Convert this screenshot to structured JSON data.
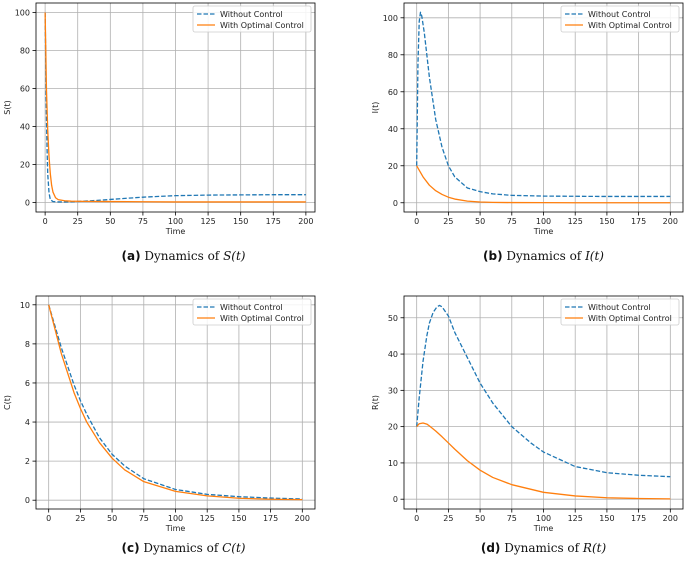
{
  "chart_data": [
    {
      "id": "S",
      "type": "line",
      "caption": {
        "tag": "(a)",
        "text": "Dynamics of",
        "var": "S(t)"
      },
      "xlabel": "Time",
      "ylabel": "S(t)",
      "xlim": [
        -7,
        207
      ],
      "ylim": [
        -5,
        105
      ],
      "xticks": [
        0,
        25,
        50,
        75,
        100,
        125,
        150,
        175,
        200
      ],
      "yticks": [
        0,
        20,
        40,
        60,
        80,
        100
      ],
      "grid": true,
      "legend_placement": "upper-right",
      "series": [
        {
          "name": "Without Control",
          "style": "dashed",
          "color": "#1f77b4",
          "x": [
            0,
            0.5,
            1,
            1.5,
            2,
            3,
            4,
            6,
            10,
            15,
            20,
            30,
            40,
            50,
            60,
            75,
            90,
            100,
            125,
            150,
            175,
            200
          ],
          "y": [
            100,
            72,
            45,
            28,
            15,
            5,
            1.5,
            0.5,
            0.3,
            0.3,
            0.4,
            0.7,
            1.1,
            1.6,
            2.1,
            2.8,
            3.3,
            3.6,
            3.9,
            4.0,
            4.1,
            4.1
          ]
        },
        {
          "name": "With Optimal Control",
          "style": "solid",
          "color": "#ff7f0e",
          "x": [
            0,
            0.5,
            1,
            2,
            3,
            4,
            5,
            6,
            8,
            10,
            15,
            20,
            30,
            50,
            75,
            100,
            125,
            150,
            175,
            200
          ],
          "y": [
            100,
            80,
            60,
            38,
            24,
            15,
            9,
            5.5,
            2.5,
            1.5,
            0.9,
            0.7,
            0.6,
            0.5,
            0.4,
            0.3,
            0.3,
            0.3,
            0.3,
            0.3
          ]
        }
      ]
    },
    {
      "id": "I",
      "type": "line",
      "caption": {
        "tag": "(b)",
        "text": "Dynamics of",
        "var": "I(t)"
      },
      "xlabel": "Time",
      "ylabel": "I(t)",
      "xlim": [
        -10,
        210
      ],
      "ylim": [
        -5,
        108
      ],
      "xticks": [
        0,
        25,
        50,
        75,
        100,
        125,
        150,
        175,
        200
      ],
      "yticks": [
        0,
        20,
        40,
        60,
        80,
        100
      ],
      "grid": true,
      "legend_placement": "upper-right",
      "series": [
        {
          "name": "Without Control",
          "style": "dashed",
          "color": "#1f77b4",
          "x": [
            0,
            1,
            2,
            3,
            4,
            6,
            8,
            10,
            15,
            20,
            25,
            30,
            40,
            50,
            60,
            75,
            100,
            125,
            150,
            175,
            200
          ],
          "y": [
            20,
            75,
            98,
            103,
            101,
            92,
            80,
            68,
            45,
            30,
            20,
            14,
            8,
            6,
            4.8,
            4.0,
            3.6,
            3.5,
            3.4,
            3.4,
            3.4
          ]
        },
        {
          "name": "With Optimal Control",
          "style": "solid",
          "color": "#ff7f0e",
          "x": [
            0,
            5,
            10,
            15,
            20,
            25,
            30,
            40,
            50,
            60,
            75,
            100,
            125,
            150,
            175,
            200
          ],
          "y": [
            20,
            14,
            9.5,
            6.5,
            4.5,
            3.0,
            2.0,
            0.9,
            0.4,
            0.2,
            0.1,
            0.05,
            0,
            0,
            0,
            0
          ]
        }
      ]
    },
    {
      "id": "C",
      "type": "line",
      "caption": {
        "tag": "(c)",
        "text": "Dynamics of",
        "var": "C(t)"
      },
      "xlabel": "Time",
      "ylabel": "C(t)",
      "xlim": [
        -10,
        210
      ],
      "ylim": [
        -0.45,
        10.45
      ],
      "xticks": [
        0,
        25,
        50,
        75,
        100,
        125,
        150,
        175,
        200
      ],
      "yticks": [
        0,
        2,
        4,
        6,
        8,
        10
      ],
      "grid": true,
      "legend_placement": "upper-right",
      "series": [
        {
          "name": "Without Control",
          "style": "dashed",
          "color": "#1f77b4",
          "x": [
            0,
            10,
            20,
            25,
            30,
            40,
            50,
            60,
            75,
            100,
            125,
            150,
            175,
            200
          ],
          "y": [
            10,
            7.8,
            5.9,
            5.1,
            4.4,
            3.2,
            2.35,
            1.75,
            1.1,
            0.55,
            0.3,
            0.18,
            0.11,
            0.06
          ]
        },
        {
          "name": "With Optimal Control",
          "style": "solid",
          "color": "#ff7f0e",
          "x": [
            0,
            10,
            20,
            25,
            30,
            40,
            50,
            60,
            75,
            100,
            125,
            150,
            175,
            200
          ],
          "y": [
            10,
            7.5,
            5.5,
            4.7,
            4.0,
            2.95,
            2.15,
            1.55,
            0.95,
            0.45,
            0.22,
            0.1,
            0.05,
            0.03
          ]
        }
      ]
    },
    {
      "id": "R",
      "type": "line",
      "caption": {
        "tag": "(d)",
        "text": "Dynamics of",
        "var": "R(t)"
      },
      "xlabel": "Time",
      "ylabel": "R(t)",
      "xlim": [
        -10,
        210
      ],
      "ylim": [
        -2.7,
        56
      ],
      "xticks": [
        0,
        25,
        50,
        75,
        100,
        125,
        150,
        175,
        200
      ],
      "yticks": [
        0,
        10,
        20,
        30,
        40,
        50
      ],
      "grid": true,
      "legend_placement": "upper-right",
      "series": [
        {
          "name": "Without Control",
          "style": "dashed",
          "color": "#1f77b4",
          "x": [
            0,
            2,
            5,
            8,
            10,
            13,
            16,
            18,
            20,
            25,
            30,
            40,
            50,
            60,
            75,
            90,
            100,
            125,
            150,
            175,
            200
          ],
          "y": [
            20,
            28,
            38,
            45,
            48.5,
            51.5,
            53,
            53.4,
            53,
            50.5,
            46,
            39,
            32,
            26.5,
            20,
            15.5,
            13,
            9,
            7.3,
            6.6,
            6.2
          ]
        },
        {
          "name": "With Optimal Control",
          "style": "solid",
          "color": "#ff7f0e",
          "x": [
            0,
            2,
            5,
            8,
            10,
            15,
            20,
            25,
            30,
            40,
            50,
            60,
            75,
            100,
            125,
            150,
            175,
            200
          ],
          "y": [
            20,
            20.8,
            21,
            20.7,
            20.2,
            18.8,
            17.2,
            15.5,
            13.8,
            10.6,
            8.0,
            6.0,
            4.0,
            1.9,
            0.9,
            0.4,
            0.2,
            0.1
          ]
        }
      ]
    }
  ]
}
